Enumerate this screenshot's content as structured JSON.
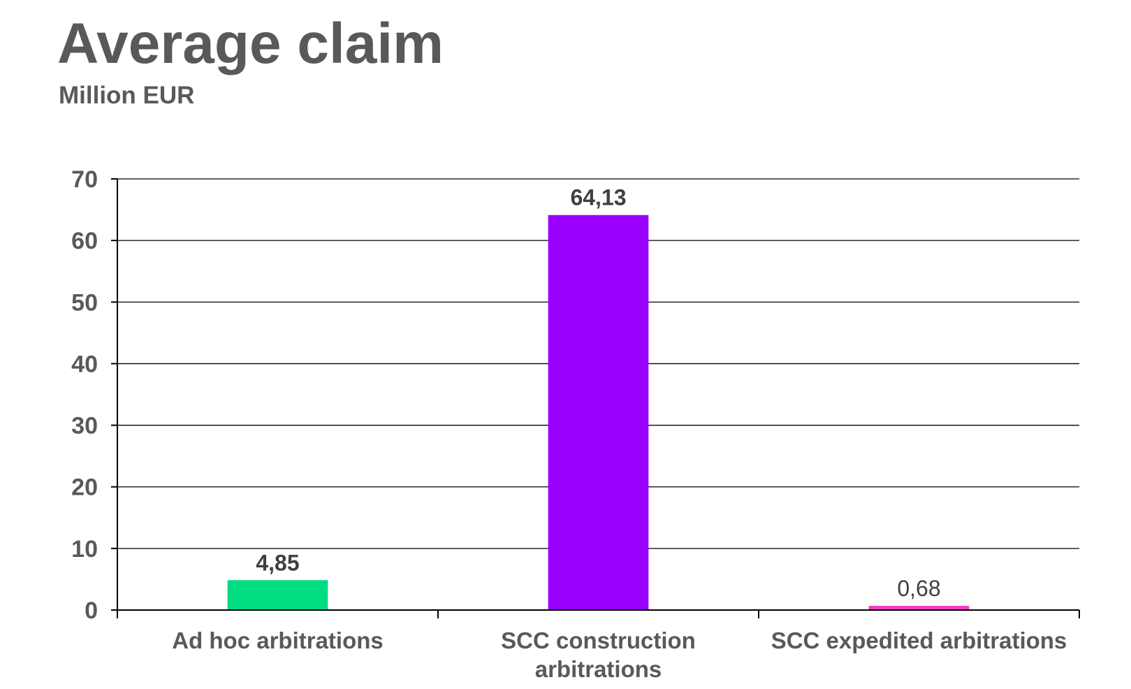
{
  "chart_data": {
    "type": "bar",
    "title": "Average claim",
    "subtitle": "Million EUR",
    "categories": [
      [
        "Ad hoc arbitrations"
      ],
      [
        "SCC construction",
        "arbitrations"
      ],
      [
        "SCC expedited arbitrations"
      ]
    ],
    "values": [
      4.85,
      64.13,
      0.68
    ],
    "data_labels": [
      "4,85",
      "64,13",
      "0,68"
    ],
    "data_label_bold": [
      true,
      true,
      false
    ],
    "colors": [
      "#00DC82",
      "#9900FF",
      "#F03CC8"
    ],
    "ylim": [
      0,
      70
    ],
    "yticks": [
      0,
      10,
      20,
      30,
      40,
      50,
      60,
      70
    ],
    "grid": true,
    "legend": "none",
    "xlabel": "",
    "ylabel": ""
  }
}
